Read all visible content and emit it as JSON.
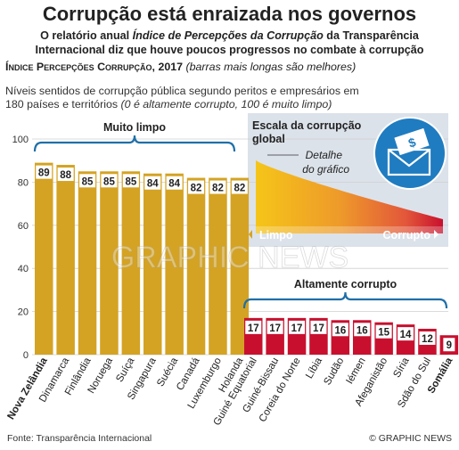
{
  "title": "Corrupção está enraizada nos governos",
  "subtitle_line1_a": "O relatório anual ",
  "subtitle_line1_italic": "Índice de Percepções da Corrupção",
  "subtitle_line1_b": " da Transparência",
  "subtitle_line2": "Internacional diz que houve poucos progressos no combate à corrupção",
  "index_label": "Índice Percepções Corrupção, 2017",
  "index_note": "(barras mais longas são melhores)",
  "desc_line1": "Níveis sentidos de corrupção pública segundo peritos e empresários em",
  "desc_line2_a": "180 países e territórios ",
  "desc_line2_italic": "(0 é altamente corrupto, 100 é muito limpo)",
  "source": "Fonte: Transparência Internacional",
  "copyright": "© GRAPHIC NEWS",
  "watermark": "GRAPHIC NEWS",
  "colors": {
    "clean": "#D4A323",
    "corrupt": "#C8102E",
    "panel": "#DCE2EA",
    "bracket": "#1F6FA8",
    "inset_title_bg": "#1F7CC0",
    "grid": "#cfcfcf"
  },
  "brackets": {
    "clean_label": "Muito limpo",
    "corrupt_label": "Altamente corrupto"
  },
  "inset": {
    "title_line1": "Escala da corrupção",
    "title_line2": "global",
    "detail_line1": "Detalhe",
    "detail_line2": "do gráfico",
    "left_label": "Limpo",
    "right_label": "Corrupto",
    "icon": "money-envelope-icon"
  },
  "chart_data": {
    "type": "bar",
    "ylim": [
      0,
      100
    ],
    "yticks": [
      0,
      20,
      40,
      60,
      80,
      100
    ],
    "grid": true,
    "groups": [
      {
        "name": "Muito limpo",
        "categories": [
          "Nova Zelândia",
          "Dinamarca",
          "Finlândia",
          "Noruega",
          "Suíça",
          "Singapura",
          "Suécia",
          "Canadá",
          "Luxemburgo",
          "Holanda"
        ],
        "values": [
          89,
          88,
          85,
          85,
          85,
          84,
          84,
          82,
          82,
          82
        ],
        "bold": [
          "Nova Zelândia"
        ]
      },
      {
        "name": "Altamente corrupto",
        "categories": [
          "Guiné Equatorial",
          "Guiné-Bissau",
          "Coreia do Norte",
          "Líbia",
          "Sudão",
          "Iémen",
          "Afeganistão",
          "Síria",
          "Sdão do Sul",
          "Somália"
        ],
        "values": [
          17,
          17,
          17,
          17,
          16,
          16,
          15,
          14,
          12,
          9
        ],
        "bold": [
          "Somália"
        ]
      }
    ]
  }
}
